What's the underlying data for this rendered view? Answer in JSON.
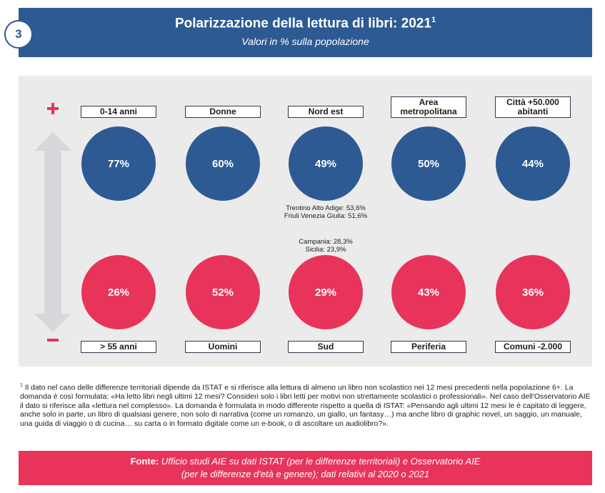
{
  "header": {
    "number": "3",
    "title": "Polarizzazione della lettura di libri: 2021",
    "title_sup": "1",
    "subtitle": "Valori in % sulla popolazione"
  },
  "chart_data": {
    "type": "bubble-comparison",
    "title": "Polarizzazione della lettura di libri: 2021",
    "subtitle": "Valori in % sulla popolazione",
    "unit": "%",
    "high": [
      {
        "label": "0-14 anni",
        "value": 77,
        "display": "77%"
      },
      {
        "label": "Donne",
        "value": 60,
        "display": "60%"
      },
      {
        "label": "Nord est",
        "value": 49,
        "display": "49%"
      },
      {
        "label": "Area metropolitana",
        "value": 50,
        "display": "50%"
      },
      {
        "label": "Città +50.000 abitanti",
        "value": 44,
        "display": "44%"
      }
    ],
    "low": [
      {
        "label": "> 55 anni",
        "value": 26,
        "display": "26%"
      },
      {
        "label": "Uomini",
        "value": 52,
        "display": "52%"
      },
      {
        "label": "Sud",
        "value": 29,
        "display": "29%"
      },
      {
        "label": "Periferia",
        "value": 43,
        "display": "43%"
      },
      {
        "label": "Comuni -2.000",
        "value": 36,
        "display": "36%"
      }
    ],
    "annotations": {
      "north_east": [
        "Trentino Alto Adige: 53,6%",
        "Friuli Venezia Giulia: 51,6%"
      ],
      "south": [
        "Campania: 28,3%",
        "Sicilia: 23,9%"
      ]
    },
    "colors": {
      "high": "#2d5a93",
      "low": "#e8345a",
      "arrow": "#d6d8db",
      "background": "#ebebeb"
    }
  },
  "high_labels_lines": [
    [
      "0-14 anni"
    ],
    [
      "Donne"
    ],
    [
      "Nord est"
    ],
    [
      "Area",
      "metropolitana"
    ],
    [
      "Città +50.000",
      "abitanti"
    ]
  ],
  "footnote": {
    "sup": "1",
    "text": " Il dato nel caso delle differenze territoriali dipende da ISTAT e si riferisce alla lettura di almeno un libro non scolastico nei 12 mesi precedenti nella popolazione 6+. La domanda è così formulata: «Ha letto libri negli ultimi 12 mesi? Consideri solo i libri letti per motivi non strettamente scolastici o professionali». Nel caso dell'Osservatorio AIE il dato si riferisce alla «lettura nel complesso». La domanda è formulata in modo differente rispetto a quella di ISTAT: «Pensando agli ultimi 12 mesi le è capitato di leggere, anche solo in parte, un libro di qualsiasi genere, non solo di narrativa (come un romanzo, un giallo, un fantasy…) ma anche libro di graphic novel, un saggio, un manuale, una guida di viaggio o di cucina… su carta o in formato digitale come un e-book, o di ascoltare un audiolibro?»."
  },
  "source": {
    "label": "Fonte:",
    "line1": "Ufficio studi AIE su dati ISTAT (per le differenze territoriali) e Osservatorio AIE",
    "line2": "(per le differenze d'età e genere); dati relativi al 2020 o 2021"
  }
}
